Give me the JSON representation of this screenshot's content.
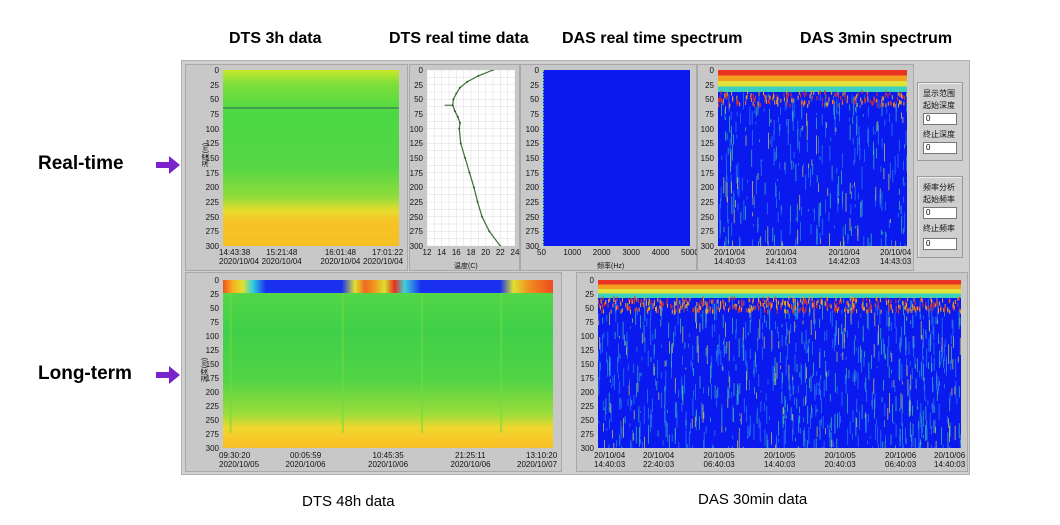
{
  "headers": {
    "dts_3h": "DTS 3h data",
    "dts_realtime": "DTS real time data",
    "das_realtime": "DAS real time spectrum",
    "das_3min": "DAS 3min spectrum"
  },
  "row_labels": {
    "realtime": "Real-time",
    "longterm": "Long-term"
  },
  "captions": {
    "dts_48h": "DTS 48h data",
    "das_30min": "DAS 30min data"
  },
  "depth_axis_label": "深度(m)",
  "temp_axis_label": "温度(C)",
  "freq_axis_label": "频率(Hz)",
  "depth_ticks": [
    "0",
    "25",
    "50",
    "75",
    "100",
    "125",
    "150",
    "175",
    "200",
    "225",
    "250",
    "275",
    "300"
  ],
  "temp_ticks": [
    "12",
    "14",
    "16",
    "18",
    "20",
    "22",
    "24"
  ],
  "freq_ticks": [
    "50",
    "1000",
    "2000",
    "3000",
    "4000",
    "5000"
  ],
  "dts3h_times": [
    {
      "t": "14:43:38",
      "d": "2020/10/04"
    },
    {
      "t": "15:21:48",
      "d": "2020/10/04"
    },
    {
      "t": "16:01:48",
      "d": "2020/10/04"
    },
    {
      "t": "17:01:22",
      "d": "2020/10/04"
    }
  ],
  "das3min_times": [
    {
      "d": "20/10/04",
      "t": "14:40:03"
    },
    {
      "d": "20/10/04",
      "t": "14:41:03"
    },
    {
      "d": "20/10/04",
      "t": "14:42:03"
    },
    {
      "d": "20/10/04",
      "t": "14:43:03"
    }
  ],
  "dts48h_times": [
    {
      "t": "09:30:20",
      "d": "2020/10/05"
    },
    {
      "t": "00:05:59",
      "d": "2020/10/06"
    },
    {
      "t": "10:45:35",
      "d": "2020/10/06"
    },
    {
      "t": "21:25:11",
      "d": "2020/10/06"
    },
    {
      "t": "13:10:20",
      "d": "2020/10/07"
    }
  ],
  "das30min_times": [
    {
      "d": "20/10/04",
      "t": "14:40:03"
    },
    {
      "d": "20/10/04",
      "t": "22:40:03"
    },
    {
      "d": "20/10/05",
      "t": "06:40:03"
    },
    {
      "d": "20/10/05",
      "t": "14:40:03"
    },
    {
      "d": "20/10/05",
      "t": "20:40:03"
    },
    {
      "d": "20/10/06",
      "t": "06:40:03"
    },
    {
      "d": "20/10/06",
      "t": "14:40:03"
    }
  ],
  "display_range_panel": {
    "title": "显示范围",
    "start_label": "起始深度",
    "start_value": "0",
    "end_label": "终止深度",
    "end_value": "0"
  },
  "freq_panel": {
    "title": "频率分析",
    "start_label": "起始频率",
    "start_value": "0",
    "end_label": "终止频率",
    "end_value": "0"
  },
  "colors": {
    "arrow": "#7a22cc",
    "das_blue": "#0a1aef",
    "field_green": "#2fd34a",
    "warm_yellow": "#f6d83a"
  },
  "temperature_profile": {
    "depth_m": [
      0,
      10,
      20,
      30,
      40,
      50,
      60,
      70,
      80,
      90,
      100,
      125,
      150,
      175,
      200,
      225,
      250,
      275,
      300
    ],
    "temp_c": [
      21,
      19,
      17.5,
      16.5,
      16,
      15.6,
      15.5,
      15.8,
      16.2,
      16.5,
      16.4,
      16.6,
      17.2,
      17.8,
      18.4,
      18.9,
      19.5,
      20.5,
      22
    ]
  }
}
